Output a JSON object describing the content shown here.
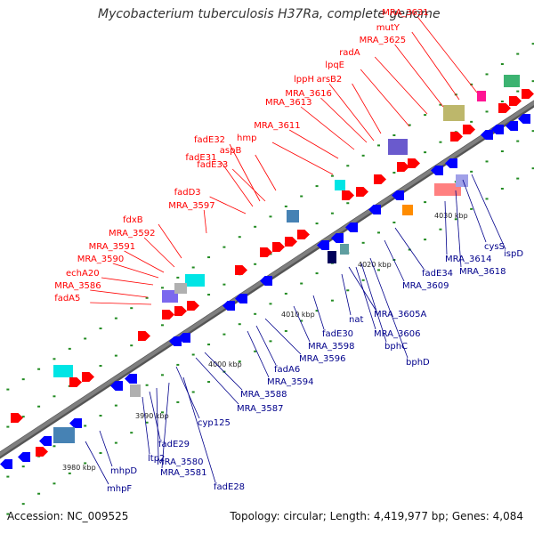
{
  "title": "Mycobacterium tuberculosis H37Ra, complete genome",
  "footer": {
    "accession": "Accession: NC_009525",
    "summary": "Topology: circular; Length: 4,419,977 bp; Genes: 4,084"
  },
  "kbp_markers": [
    "3980 kbp",
    "3990 kbp",
    "4000 kbp",
    "4010 kbp",
    "4020 kbp",
    "4030 kbp"
  ],
  "top_labels": [
    "fadA5",
    "MRA_3586",
    "echA20",
    "MRA_3590",
    "MRA_3591",
    "MRA_3592",
    "fdxB",
    "MRA_3597",
    "fadD3",
    "fadE31",
    "fadE32",
    "fadE33",
    "aspB",
    "hmp",
    "MRA_3611",
    "MRA_3613",
    "MRA_3616",
    "lppH",
    "arsB2",
    "lpqE",
    "radA",
    "MRA_3625",
    "mutY",
    "MRA_3631"
  ],
  "bottom_labels": [
    "mhpF",
    "mhpD",
    "ltp2",
    "fadE29",
    "MRA_3580",
    "MRA_3581",
    "fadE28",
    "cyp125",
    "MRA_3587",
    "MRA_3588",
    "MRA_3594",
    "fadA6",
    "MRA_3596",
    "MRA_3598",
    "fadE30",
    "nat",
    "MRA_3605A",
    "MRA_3606",
    "bphC",
    "bphD",
    "MRA_3609",
    "fadE34",
    "MRA_3614",
    "MRA_3618",
    "cysS",
    "ispD"
  ],
  "colors": {
    "forward_gene": "#ff0000",
    "reverse_gene": "#0000ff",
    "top_label": "#ff0000",
    "bottom_label": "#00008b",
    "backbone": "#7f7f7f",
    "tick": "#228b22"
  }
}
